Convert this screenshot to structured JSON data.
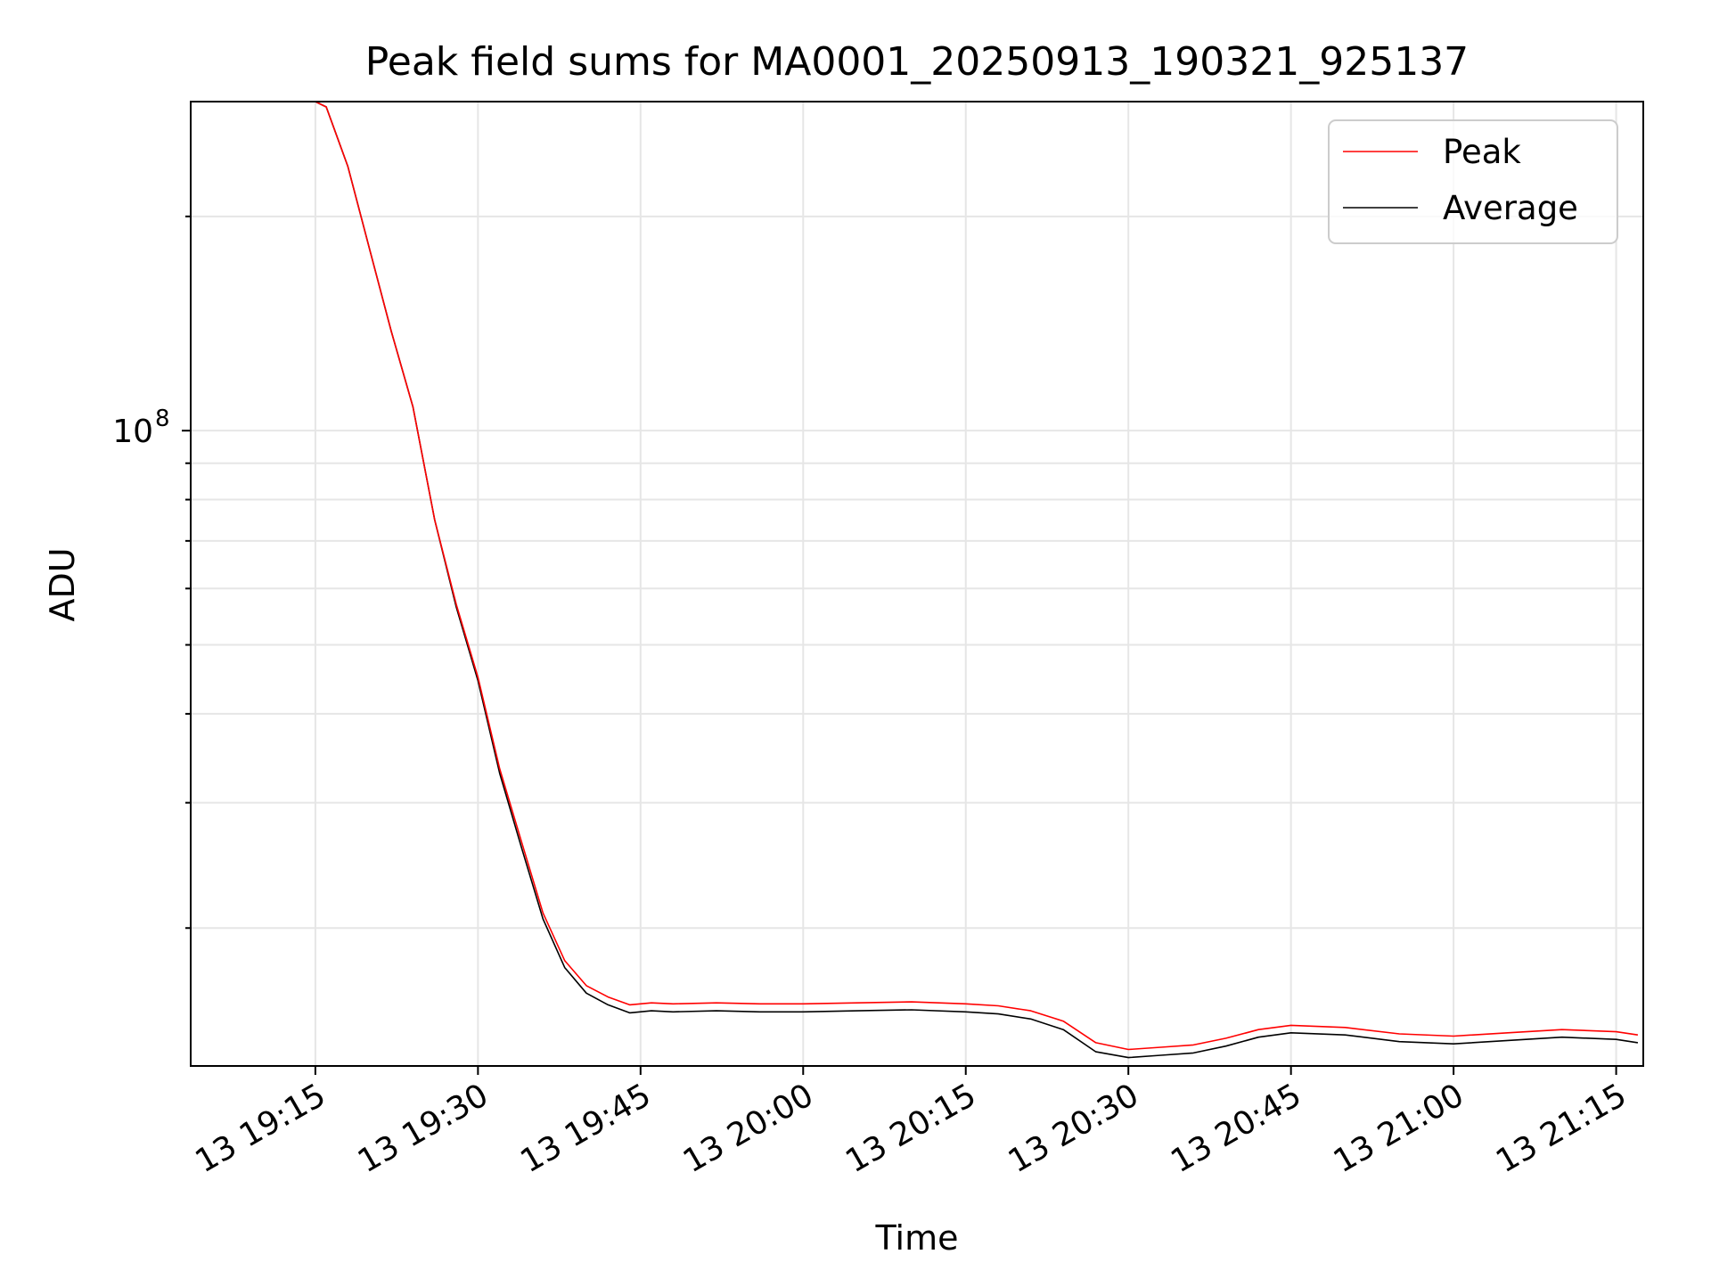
{
  "chart_data": {
    "type": "line",
    "title": "Peak field sums for MA0001_20250913_190321_925137",
    "xlabel": "Time",
    "ylabel": "ADU",
    "yscale": "log",
    "grid": true,
    "legend_position": "top-right",
    "x_ticks": [
      "13 19:15",
      "13 19:30",
      "13 19:45",
      "13 20:00",
      "13 20:15",
      "13 20:30",
      "13 20:45",
      "13 21:00",
      "13 21:15"
    ],
    "x_tick_values": [
      "2025-09-13 19:15",
      "2025-09-13 19:30",
      "2025-09-13 19:45",
      "2025-09-13 20:00",
      "2025-09-13 20:15",
      "2025-09-13 20:30",
      "2025-09-13 20:45",
      "2025-09-13 21:00",
      "2025-09-13 21:15"
    ],
    "x_range": [
      "2025-09-13 19:03:30",
      "2025-09-13 21:17:30"
    ],
    "y_range": [
      12800000,
      290000000
    ],
    "y_major_tick_labels": [
      {
        "value": 100000000,
        "mantissa": "10",
        "exponent": "8"
      }
    ],
    "y_minor_ticks": [
      20000000,
      30000000,
      40000000,
      50000000,
      60000000,
      70000000,
      80000000,
      90000000,
      200000000
    ],
    "legend": [
      "Peak",
      "Average"
    ],
    "series": [
      {
        "name": "Peak",
        "color": "#ff0000",
        "x": [
          "2025-09-13 19:15",
          "2025-09-13 19:16",
          "2025-09-13 19:18",
          "2025-09-13 19:20",
          "2025-09-13 19:22",
          "2025-09-13 19:24",
          "2025-09-13 19:26",
          "2025-09-13 19:28",
          "2025-09-13 19:30",
          "2025-09-13 19:32",
          "2025-09-13 19:34",
          "2025-09-13 19:36",
          "2025-09-13 19:38",
          "2025-09-13 19:40",
          "2025-09-13 19:42",
          "2025-09-13 19:44",
          "2025-09-13 19:46",
          "2025-09-13 19:48",
          "2025-09-13 19:52",
          "2025-09-13 19:56",
          "2025-09-13 20:00",
          "2025-09-13 20:05",
          "2025-09-13 20:10",
          "2025-09-13 20:15",
          "2025-09-13 20:18",
          "2025-09-13 20:21",
          "2025-09-13 20:24",
          "2025-09-13 20:27",
          "2025-09-13 20:30",
          "2025-09-13 20:33",
          "2025-09-13 20:36",
          "2025-09-13 20:39",
          "2025-09-13 20:42",
          "2025-09-13 20:45",
          "2025-09-13 20:50",
          "2025-09-13 20:55",
          "2025-09-13 21:00",
          "2025-09-13 21:05",
          "2025-09-13 21:10",
          "2025-09-13 21:15",
          "2025-09-13 21:17"
        ],
        "y": [
          290000000,
          285000000,
          235000000,
          180000000,
          138000000,
          108000000,
          75000000,
          57000000,
          45000000,
          33500000,
          26500000,
          21000000,
          18000000,
          16600000,
          16000000,
          15600000,
          15700000,
          15650000,
          15700000,
          15650000,
          15650000,
          15700000,
          15750000,
          15650000,
          15550000,
          15300000,
          14800000,
          13800000,
          13500000,
          13600000,
          13700000,
          14000000,
          14400000,
          14600000,
          14500000,
          14200000,
          14100000,
          14250000,
          14400000,
          14300000,
          14150000
        ]
      },
      {
        "name": "Average",
        "color": "#000000",
        "x": [
          "2025-09-13 19:15",
          "2025-09-13 19:16",
          "2025-09-13 19:18",
          "2025-09-13 19:20",
          "2025-09-13 19:22",
          "2025-09-13 19:24",
          "2025-09-13 19:26",
          "2025-09-13 19:28",
          "2025-09-13 19:30",
          "2025-09-13 19:32",
          "2025-09-13 19:34",
          "2025-09-13 19:36",
          "2025-09-13 19:38",
          "2025-09-13 19:40",
          "2025-09-13 19:42",
          "2025-09-13 19:44",
          "2025-09-13 19:46",
          "2025-09-13 19:48",
          "2025-09-13 19:52",
          "2025-09-13 19:56",
          "2025-09-13 20:00",
          "2025-09-13 20:05",
          "2025-09-13 20:10",
          "2025-09-13 20:15",
          "2025-09-13 20:18",
          "2025-09-13 20:21",
          "2025-09-13 20:24",
          "2025-09-13 20:27",
          "2025-09-13 20:30",
          "2025-09-13 20:33",
          "2025-09-13 20:36",
          "2025-09-13 20:39",
          "2025-09-13 20:42",
          "2025-09-13 20:45",
          "2025-09-13 20:50",
          "2025-09-13 20:55",
          "2025-09-13 21:00",
          "2025-09-13 21:05",
          "2025-09-13 21:10",
          "2025-09-13 21:15",
          "2025-09-13 21:17"
        ],
        "y": [
          290000000,
          285000000,
          235000000,
          180000000,
          138000000,
          108000000,
          75000000,
          56500000,
          44500000,
          33000000,
          26000000,
          20600000,
          17600000,
          16200000,
          15600000,
          15200000,
          15300000,
          15250000,
          15300000,
          15250000,
          15250000,
          15300000,
          15350000,
          15250000,
          15150000,
          14900000,
          14400000,
          13400000,
          13150000,
          13250000,
          13350000,
          13650000,
          14050000,
          14250000,
          14150000,
          13850000,
          13750000,
          13900000,
          14050000,
          13950000,
          13800000
        ]
      }
    ]
  }
}
